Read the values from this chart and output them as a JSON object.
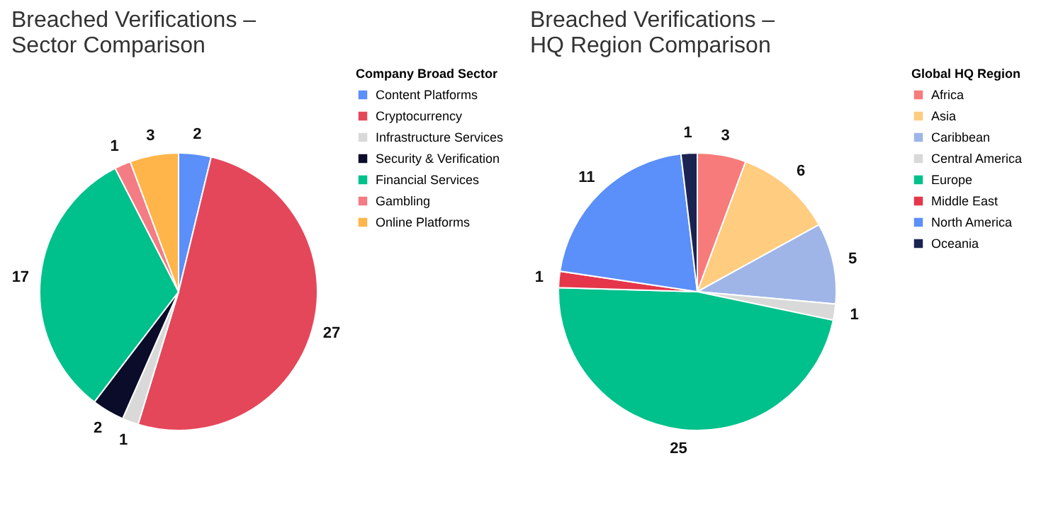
{
  "chart_data": [
    {
      "type": "pie",
      "title": "Breached Verifications – Sector Comparison",
      "legend_title": "Company Broad Sector",
      "legend": "top right",
      "data_labels": true,
      "categories": [
        "Content Platforms",
        "Cryptocurrency",
        "Infrastructure Services",
        "Security & Verification",
        "Financial Services",
        "Gambling",
        "Online Platforms"
      ],
      "values": [
        2,
        27,
        1,
        2,
        17,
        1,
        3
      ],
      "colors": [
        "#5b8ff9",
        "#e5475a",
        "#d9d9d9",
        "#0b0b2a",
        "#00c08b",
        "#f47c84",
        "#ffb54a"
      ]
    },
    {
      "type": "pie",
      "title": "Breached Verifications – HQ Region Comparison",
      "legend_title": "Global HQ Region",
      "legend": "top right",
      "data_labels": true,
      "categories": [
        "Africa",
        "Asia",
        "Caribbean",
        "Central America",
        "Europe",
        "Middle East",
        "North America",
        "Oceania"
      ],
      "values": [
        3,
        6,
        5,
        1,
        25,
        1,
        11,
        1
      ],
      "colors": [
        "#f77b7b",
        "#ffcc80",
        "#9fb5e8",
        "#d9d9d9",
        "#00c08b",
        "#e5364a",
        "#5b8ff9",
        "#1b2451"
      ]
    }
  ]
}
